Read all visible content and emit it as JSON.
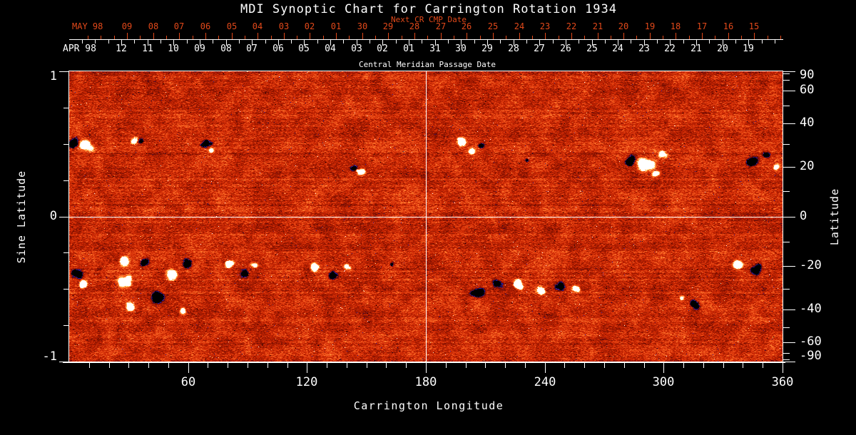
{
  "title": "MDI Synoptic Chart for Carrington Rotation 1934",
  "top_axis": {
    "next_cr_label": "Next CR CMP Date",
    "red_month": "MAY 98",
    "red_days": [
      "09",
      "08",
      "07",
      "06",
      "05",
      "04",
      "03",
      "02",
      "01",
      "30",
      "29",
      "28",
      "27",
      "26",
      "25",
      "24",
      "23",
      "22",
      "21",
      "20",
      "19",
      "18",
      "17",
      "16",
      "15"
    ],
    "white_month": "APR 98",
    "white_days": [
      "12",
      "11",
      "10",
      "09",
      "08",
      "07",
      "06",
      "05",
      "04",
      "03",
      "02",
      "01",
      "31",
      "30",
      "29",
      "28",
      "27",
      "26",
      "25",
      "24",
      "23",
      "22",
      "21",
      "20",
      "19"
    ],
    "axis_title": "Central Meridian Passage Date"
  },
  "bottom_axis": {
    "title": "Carrington Longitude",
    "major_ticks": [
      60,
      120,
      180,
      240,
      300,
      360
    ],
    "minor_step": 10
  },
  "left_axis": {
    "title": "Sine Latitude",
    "labeled_ticks": [
      1,
      0,
      -1
    ],
    "minor_ticks": [
      0.75,
      0.5,
      0.25,
      -0.25,
      -0.5,
      -0.75
    ]
  },
  "right_axis": {
    "title": "Latitude",
    "labeled_ticks": [
      90,
      60,
      40,
      20,
      0,
      -20,
      -40,
      -60,
      -90
    ],
    "minor_ticks": [
      80,
      70,
      50,
      30,
      10,
      -10,
      -30,
      -50,
      -70,
      -80
    ]
  },
  "colors": {
    "background": "#000000",
    "text": "#ffffff",
    "red_axis": "#e2491a",
    "grid_line": "#ffffff"
  },
  "chart_data": {
    "type": "heatmap",
    "title": "MDI Synoptic Chart for Carrington Rotation 1934",
    "xlabel": "Carrington Longitude",
    "ylabel_left": "Sine Latitude",
    "ylabel_right": "Latitude",
    "x_range": [
      0,
      360
    ],
    "y_range_sine_latitude": [
      -1,
      1
    ],
    "reference_lines": {
      "longitude": 180,
      "sine_latitude": 0
    },
    "description": "SOHO/MDI photospheric magnetogram synoptic map: orange/red granular noise is quiet Sun, white/yellow patches are positive magnetic polarity, black patches with blue fringes are negative polarity",
    "palette": [
      [
        -1.0,
        "#000000"
      ],
      [
        -0.86,
        "#06041e"
      ],
      [
        -0.68,
        "#2c20b2"
      ],
      [
        -0.52,
        "#55071e"
      ],
      [
        -0.42,
        "#700c00"
      ],
      [
        0.0,
        "#c92502"
      ],
      [
        0.2,
        "#e84614"
      ],
      [
        0.45,
        "#ff7d2e"
      ],
      [
        0.62,
        "#ffae50"
      ],
      [
        0.76,
        "#ffdf90"
      ],
      [
        0.88,
        "#fff6d8"
      ],
      [
        1.0,
        "#ffffff"
      ]
    ],
    "noise": {
      "amplitude": 0.5,
      "blotch": 0.17,
      "row_streak": 0.09,
      "speck_probability": 0.0045,
      "negative_speck_fraction": 0.6
    },
    "active_regions": [
      {
        "lon": 2,
        "slat": 0.5,
        "r": 7,
        "amp": -1.2
      },
      {
        "lon": 8,
        "slat": 0.49,
        "r": 8,
        "amp": 1.3
      },
      {
        "lon": 32,
        "slat": 0.53,
        "r": 4,
        "amp": 0.9
      },
      {
        "lon": 36,
        "slat": 0.52,
        "r": 3,
        "amp": -0.8
      },
      {
        "lon": 69,
        "slat": 0.51,
        "r": 6,
        "amp": -1.1
      },
      {
        "lon": 72,
        "slat": 0.46,
        "r": 3,
        "amp": 0.8
      },
      {
        "lon": 143,
        "slat": 0.33,
        "r": 4,
        "amp": -1.1
      },
      {
        "lon": 147,
        "slat": 0.3,
        "r": 5,
        "amp": 1.2
      },
      {
        "lon": 198,
        "slat": 0.52,
        "r": 6,
        "amp": 1.3
      },
      {
        "lon": 203,
        "slat": 0.45,
        "r": 4,
        "amp": 0.9
      },
      {
        "lon": 208,
        "slat": 0.49,
        "r": 3,
        "amp": -0.9
      },
      {
        "lon": 231,
        "slat": 0.39,
        "r": 2,
        "amp": -0.8
      },
      {
        "lon": 283,
        "slat": 0.38,
        "r": 7,
        "amp": -1.3
      },
      {
        "lon": 291,
        "slat": 0.36,
        "r": 8,
        "amp": 1.35
      },
      {
        "lon": 299,
        "slat": 0.43,
        "r": 5,
        "amp": 1.0
      },
      {
        "lon": 296,
        "slat": 0.3,
        "r": 4,
        "amp": 1.0
      },
      {
        "lon": 344,
        "slat": 0.38,
        "r": 7,
        "amp": -1.25
      },
      {
        "lon": 352,
        "slat": 0.43,
        "r": 4,
        "amp": -0.9
      },
      {
        "lon": 357,
        "slat": 0.34,
        "r": 4,
        "amp": 1.1
      },
      {
        "lon": 4,
        "slat": -0.39,
        "r": 6,
        "amp": -1.1
      },
      {
        "lon": 7,
        "slat": -0.47,
        "r": 6,
        "amp": 1.2
      },
      {
        "lon": 27,
        "slat": -0.3,
        "r": 6,
        "amp": 1.2
      },
      {
        "lon": 28,
        "slat": -0.45,
        "r": 8,
        "amp": 1.35
      },
      {
        "lon": 30,
        "slat": -0.62,
        "r": 5,
        "amp": 1.0
      },
      {
        "lon": 37,
        "slat": -0.31,
        "r": 6,
        "amp": -1.2
      },
      {
        "lon": 45,
        "slat": -0.55,
        "r": 8,
        "amp": -1.3
      },
      {
        "lon": 53,
        "slat": -0.4,
        "r": 7,
        "amp": 1.25
      },
      {
        "lon": 60,
        "slat": -0.32,
        "r": 5,
        "amp": -1.1
      },
      {
        "lon": 57,
        "slat": -0.65,
        "r": 4,
        "amp": 1.0
      },
      {
        "lon": 80,
        "slat": -0.33,
        "r": 6,
        "amp": 1.2
      },
      {
        "lon": 88,
        "slat": -0.39,
        "r": 6,
        "amp": -1.15
      },
      {
        "lon": 93,
        "slat": -0.33,
        "r": 3,
        "amp": 0.9
      },
      {
        "lon": 124,
        "slat": -0.35,
        "r": 6,
        "amp": 1.2
      },
      {
        "lon": 133,
        "slat": -0.4,
        "r": 5,
        "amp": -1.1
      },
      {
        "lon": 140,
        "slat": -0.34,
        "r": 4,
        "amp": 1.0
      },
      {
        "lon": 163,
        "slat": -0.33,
        "r": 2,
        "amp": -0.8
      },
      {
        "lon": 206,
        "slat": -0.52,
        "r": 7,
        "amp": -1.3
      },
      {
        "lon": 216,
        "slat": -0.46,
        "r": 5,
        "amp": -1.0
      },
      {
        "lon": 226,
        "slat": -0.47,
        "r": 8,
        "amp": 1.35
      },
      {
        "lon": 238,
        "slat": -0.51,
        "r": 6,
        "amp": 1.1
      },
      {
        "lon": 248,
        "slat": -0.48,
        "r": 6,
        "amp": -1.15
      },
      {
        "lon": 256,
        "slat": -0.5,
        "r": 5,
        "amp": 1.05
      },
      {
        "lon": 315,
        "slat": -0.6,
        "r": 6,
        "amp": -1.2
      },
      {
        "lon": 309,
        "slat": -0.56,
        "r": 3,
        "amp": 0.9
      },
      {
        "lon": 337,
        "slat": -0.33,
        "r": 6,
        "amp": 1.2
      },
      {
        "lon": 346,
        "slat": -0.37,
        "r": 6,
        "amp": -1.15
      }
    ]
  }
}
